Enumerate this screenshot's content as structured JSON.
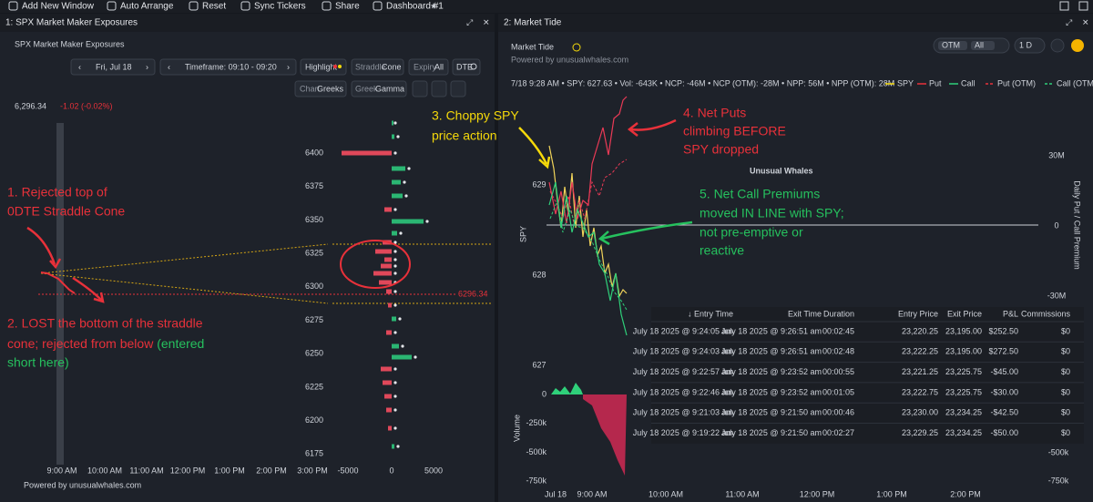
{
  "toolbar": {
    "items": [
      "Add New Window",
      "Auto Arrange",
      "Reset",
      "Sync Tickers",
      "Share",
      "Dashboard #1"
    ]
  },
  "left_panel": {
    "tab": "1: SPX Market Maker Exposures",
    "title": "SPX Market Maker Exposures",
    "date": "Fri, Jul 18",
    "timeframe": "Timeframe: 09:10 - 09:20",
    "highlight": "Highlight",
    "straddle": {
      "label": "Straddle",
      "value": "Cone"
    },
    "expiry": {
      "label": "Expiry",
      "value": "All"
    },
    "dte": "DTE",
    "chart": {
      "label": "Chart",
      "value": "Greeks"
    },
    "greek": {
      "label": "Greek",
      "value": "Gamma"
    },
    "price": "6,296.34",
    "change": "-1.02 (-0.02%)",
    "strike_labels": [
      "6400",
      "6375",
      "6350",
      "6325",
      "6300",
      "6275",
      "6250",
      "6225",
      "6200",
      "6175"
    ],
    "price_line_label": "6296.34",
    "time_labels": [
      "9:00 AM",
      "10:00 AM",
      "11:00 AM",
      "12:00 PM",
      "1:00 PM",
      "2:00 PM",
      "3:00 PM"
    ],
    "exposure_labels": [
      "-5000",
      "0",
      "5000"
    ],
    "powered": "Powered by unusualwhales.com"
  },
  "right_panel": {
    "tab": "2: Market Tide",
    "title": "Market Tide",
    "powered": "Powered by unusualwhales.com",
    "filters": [
      "OTM",
      "All"
    ],
    "period": "1 D",
    "stats": "7/18 9:28 AM • SPY: 627.63 • Vol: -643K • NCP: -46M • NCP (OTM): -28M • NPP: 56M • NPP (OTM): 28M",
    "legend": [
      "SPY",
      "Put",
      "Call",
      "Put (OTM)",
      "Call (OTM)"
    ],
    "spy_labels": [
      "629",
      "628",
      "627"
    ],
    "spy_axis_title": "SPY",
    "premium_labels": [
      "30M",
      "0",
      "-30M"
    ],
    "premium_axis_title": "Daily Put / Call Premium",
    "volume_labels": [
      "0",
      "-250k",
      "-500k",
      "-750k"
    ],
    "volume_right_labels": [
      "-500k",
      "-750k"
    ],
    "volume_axis_title": "Volume",
    "time_labels": [
      "Jul 18",
      "9:00 AM",
      "10:00 AM",
      "11:00 AM",
      "12:00 PM",
      "1:00 PM",
      "2:00 PM"
    ],
    "watermark": "Unusual Whales"
  },
  "annotations": {
    "a1": [
      "1. Rejected top of",
      "0DTE Straddle Cone"
    ],
    "a2": {
      "line1": "2. LOST the bottom of the straddle",
      "line2": "cone; rejected from below ",
      "green1": "(entered",
      "green2": "short here)"
    },
    "a3": [
      "3. Choppy SPY",
      "price action"
    ],
    "a4": [
      "4. Net Puts",
      "climbing BEFORE",
      "SPY dropped"
    ],
    "a5": [
      "5. Net Call Premiums",
      "moved IN LINE with SPY;",
      "not pre-emptive or",
      "reactive"
    ]
  },
  "table": {
    "headers": [
      "↓ Entry Time",
      "Exit Time",
      "Duration",
      "Entry Price",
      "Exit Price",
      "P&L",
      "Commissions"
    ],
    "rows": [
      [
        "July 18 2025 @ 9:24:05 am",
        "July 18 2025 @ 9:26:51 am",
        "00:02:45",
        "23,220.25",
        "23,195.00",
        "$252.50",
        "$0"
      ],
      [
        "July 18 2025 @ 9:24:03 am",
        "July 18 2025 @ 9:26:51 am",
        "00:02:48",
        "23,222.25",
        "23,195.00",
        "$272.50",
        "$0"
      ],
      [
        "July 18 2025 @ 9:22:57 am",
        "July 18 2025 @ 9:23:52 am",
        "00:00:55",
        "23,221.25",
        "23,225.75",
        "-$45.00",
        "$0"
      ],
      [
        "July 18 2025 @ 9:22:46 am",
        "July 18 2025 @ 9:23:52 am",
        "00:01:05",
        "23,222.75",
        "23,225.75",
        "-$30.00",
        "$0"
      ],
      [
        "July 18 2025 @ 9:21:03 am",
        "July 18 2025 @ 9:21:50 am",
        "00:00:46",
        "23,230.00",
        "23,234.25",
        "-$42.50",
        "$0"
      ],
      [
        "July 18 2025 @ 9:19:22 am",
        "July 18 2025 @ 9:21:50 am",
        "00:02:27",
        "23,229.25",
        "23,234.25",
        "-$50.00",
        "$0"
      ]
    ]
  }
}
